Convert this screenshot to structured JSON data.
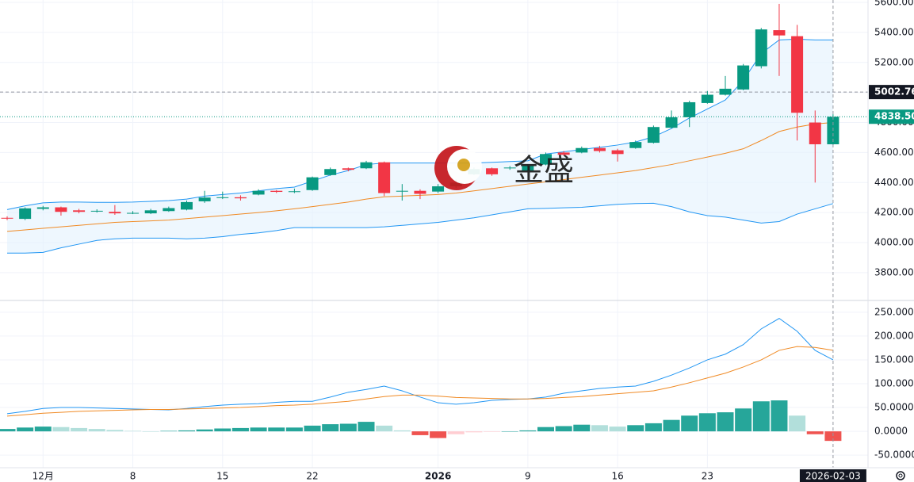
{
  "chart_data": {
    "type": "candlestick",
    "watermark": "金盛",
    "categories": [
      null,
      null,
      "12月",
      null,
      null,
      null,
      null,
      "8",
      null,
      null,
      null,
      null,
      "15",
      null,
      null,
      null,
      null,
      "22",
      null,
      null,
      null,
      null,
      null,
      null,
      "2026",
      null,
      null,
      null,
      null,
      "9",
      null,
      null,
      null,
      null,
      "16",
      null,
      null,
      null,
      null,
      "23",
      null,
      null,
      null,
      null,
      null,
      null,
      "2026-02-03"
    ],
    "open": [
      4165,
      4158,
      4225,
      4235,
      4215,
      4210,
      4205,
      4195,
      4195,
      4210,
      4220,
      4275,
      4298,
      4302,
      4320,
      4345,
      4338,
      4350,
      4450,
      4495,
      4495,
      4535,
      4340,
      4345,
      4340,
      4375,
      4455,
      4495,
      4495,
      4480,
      4520,
      4600,
      4600,
      4630,
      4615,
      4630,
      4665,
      4765,
      4835,
      4930,
      4985,
      5020,
      5175,
      5415,
      5375,
      4800,
      4655
    ],
    "high": [
      4175,
      4235,
      4245,
      4240,
      4225,
      4222,
      4250,
      4210,
      4225,
      4240,
      4280,
      4345,
      4340,
      4315,
      4355,
      4350,
      4360,
      4440,
      4500,
      4500,
      4545,
      4540,
      4390,
      4355,
      4390,
      4420,
      4500,
      4500,
      4510,
      4520,
      4600,
      4610,
      4640,
      4645,
      4625,
      4680,
      4780,
      4880,
      4945,
      5010,
      5110,
      5190,
      5430,
      5590,
      5450,
      4880,
      4855
    ],
    "low": [
      4150,
      4150,
      4215,
      4180,
      4195,
      4200,
      4185,
      4190,
      4190,
      4205,
      4215,
      4265,
      4290,
      4280,
      4315,
      4330,
      4330,
      4345,
      4445,
      4475,
      4490,
      4310,
      4280,
      4290,
      4330,
      4365,
      4450,
      4445,
      4485,
      4475,
      4515,
      4580,
      4595,
      4600,
      4540,
      4625,
      4660,
      4760,
      4770,
      4925,
      4980,
      5015,
      5160,
      5110,
      4680,
      4400,
      4650
    ],
    "close": [
      4160,
      4228,
      4235,
      4205,
      4205,
      4212,
      4195,
      4198,
      4215,
      4230,
      4270,
      4300,
      4302,
      4295,
      4345,
      4338,
      4342,
      4435,
      4490,
      4485,
      4535,
      4330,
      4345,
      4325,
      4375,
      4400,
      4490,
      4455,
      4500,
      4510,
      4590,
      4585,
      4630,
      4610,
      4590,
      4670,
      4770,
      4835,
      4935,
      4985,
      5025,
      5180,
      5420,
      5380,
      4865,
      4655,
      4838.5
    ],
    "up_color": "#089981",
    "down_color": "#f23645",
    "ylim": [
      3620,
      5616
    ],
    "yticks": [
      {
        "value": 5600,
        "label": "5600.00"
      },
      {
        "value": 5400,
        "label": "5400.00"
      },
      {
        "value": 5200,
        "label": "5200.00"
      },
      {
        "value": 5000,
        "label": "5000.00"
      },
      {
        "value": 4800,
        "label": "4800.00"
      },
      {
        "value": 4600,
        "label": "4600.00"
      },
      {
        "value": 4400,
        "label": "4400.00"
      },
      {
        "value": 4200,
        "label": "4200.00"
      },
      {
        "value": 4000,
        "label": "4000.00"
      },
      {
        "value": 3800,
        "label": "3800.00"
      }
    ],
    "grid": true,
    "bollinger": {
      "upper": [
        4220,
        4245,
        4265,
        4270,
        4270,
        4268,
        4268,
        4270,
        4275,
        4280,
        4290,
        4310,
        4320,
        4330,
        4345,
        4360,
        4370,
        4410,
        4450,
        4480,
        4520,
        4530,
        4530,
        4530,
        4530,
        4530,
        4530,
        4535,
        4540,
        4545,
        4590,
        4605,
        4620,
        4635,
        4650,
        4670,
        4705,
        4760,
        4830,
        4890,
        4950,
        5080,
        5260,
        5350,
        5355,
        5350,
        5350
      ],
      "middle": [
        4075,
        4085,
        4095,
        4105,
        4115,
        4125,
        4135,
        4140,
        4145,
        4150,
        4160,
        4170,
        4180,
        4190,
        4200,
        4212,
        4225,
        4240,
        4255,
        4270,
        4290,
        4305,
        4310,
        4315,
        4320,
        4330,
        4345,
        4360,
        4375,
        4390,
        4405,
        4420,
        4435,
        4450,
        4465,
        4480,
        4500,
        4520,
        4545,
        4570,
        4595,
        4625,
        4680,
        4740,
        4770,
        4790,
        4800
      ],
      "lower": [
        3930,
        3930,
        3935,
        3965,
        3990,
        4015,
        4025,
        4030,
        4030,
        4030,
        4025,
        4030,
        4040,
        4055,
        4065,
        4080,
        4100,
        4100,
        4100,
        4100,
        4100,
        4105,
        4115,
        4125,
        4135,
        4150,
        4165,
        4185,
        4205,
        4225,
        4228,
        4232,
        4235,
        4245,
        4255,
        4260,
        4262,
        4240,
        4205,
        4180,
        4170,
        4150,
        4130,
        4140,
        4190,
        4225,
        4260
      ],
      "band_color": "#2196f3",
      "middle_color": "#f08a24",
      "fill": "#e3f2fd"
    },
    "price_markers": [
      {
        "value": 5002.76,
        "label": "5002.76",
        "color": "#131722"
      },
      {
        "value": 4838.5,
        "label": "4838.50",
        "color": "#089981"
      }
    ],
    "macd": {
      "ylim": [
        -73,
        273
      ],
      "yticks": [
        {
          "value": 250,
          "label": "250.000"
        },
        {
          "value": 200,
          "label": "200.000"
        },
        {
          "value": 150,
          "label": "150.000"
        },
        {
          "value": 100,
          "label": "100.000"
        },
        {
          "value": 50,
          "label": "50.0000"
        },
        {
          "value": 0,
          "label": "0.0000"
        },
        {
          "value": -50,
          "label": "-50.0000"
        }
      ],
      "histogram": [
        5,
        8,
        10,
        9,
        7,
        5,
        3,
        1,
        0,
        1,
        2,
        4,
        6,
        7,
        8,
        8,
        8,
        12,
        15,
        16,
        20,
        12,
        2,
        -8,
        -14,
        -6,
        -2,
        -1,
        0,
        2,
        9,
        11,
        14,
        13,
        10,
        13,
        17,
        24,
        33,
        38,
        40,
        48,
        63,
        65,
        33,
        -6,
        -20
      ],
      "histogram_colors": {
        "up_rising": "#26a69a",
        "up_falling": "#b2dfdb",
        "down_falling": "#ef5350",
        "down_rising": "#ffcdd2"
      },
      "series": [
        {
          "color": "#2196f3",
          "values": [
            37,
            42,
            48,
            50,
            50,
            49,
            48,
            47,
            46,
            45,
            48,
            52,
            55,
            57,
            58,
            61,
            63,
            63,
            72,
            82,
            88,
            95,
            85,
            72,
            60,
            57,
            60,
            65,
            67,
            68,
            72,
            80,
            85,
            90,
            93,
            95,
            105,
            118,
            133,
            150,
            162,
            182,
            215,
            237,
            210,
            170,
            150
          ]
        },
        {
          "color": "#f08a24",
          "values": [
            32,
            35,
            38,
            40,
            42,
            43,
            44,
            45,
            46,
            46,
            47,
            48,
            49,
            50,
            52,
            54,
            55,
            57,
            60,
            63,
            68,
            73,
            76,
            76,
            74,
            71,
            70,
            69,
            68,
            68,
            69,
            71,
            73,
            76,
            79,
            82,
            85,
            93,
            102,
            112,
            122,
            135,
            150,
            170,
            178,
            176,
            170
          ]
        }
      ]
    }
  }
}
